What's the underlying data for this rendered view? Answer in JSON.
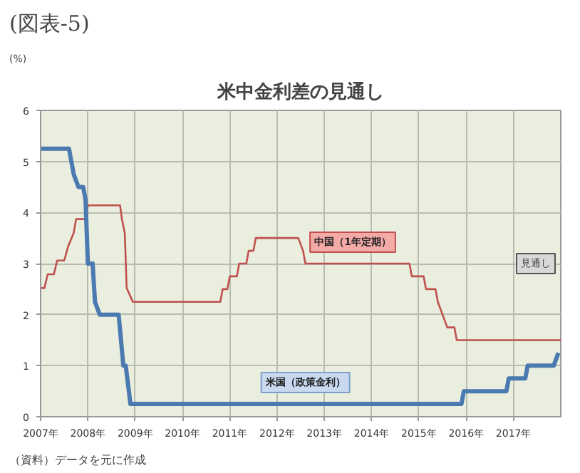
{
  "chart_data": {
    "type": "line",
    "title": "米中金利差の見通し",
    "ylabel": "(%)",
    "xlim": [
      2007,
      2018
    ],
    "ylim": [
      0,
      6
    ],
    "xticks": [
      {
        "value": 2007,
        "label": "2007年"
      },
      {
        "value": 2008,
        "label": "2008年"
      },
      {
        "value": 2009,
        "label": "2009年"
      },
      {
        "value": 2010,
        "label": "2010年"
      },
      {
        "value": 2011,
        "label": "2011年"
      },
      {
        "value": 2012,
        "label": "2012年"
      },
      {
        "value": 2013,
        "label": "2013年"
      },
      {
        "value": 2014,
        "label": "2014年"
      },
      {
        "value": 2015,
        "label": "2015年"
      },
      {
        "value": 2016,
        "label": "2016年"
      },
      {
        "value": 2017,
        "label": "2017年"
      }
    ],
    "yticks": [
      0,
      1,
      2,
      3,
      4,
      5,
      6
    ],
    "grid": true,
    "marker": "none",
    "line_style": "solid",
    "series": [
      {
        "color": "#c0504d",
        "x": [
          2007.0,
          2007.08,
          2007.15,
          2007.28,
          2007.35,
          2007.5,
          2007.58,
          2007.7,
          2007.75,
          2007.95,
          2008.0,
          2008.68,
          2008.72,
          2008.78,
          2008.82,
          2008.95,
          2010.8,
          2010.85,
          2010.95,
          2011.0,
          2011.15,
          2011.2,
          2011.35,
          2011.4,
          2011.5,
          2011.55,
          2012.45,
          2012.55,
          2012.6,
          2014.8,
          2014.85,
          2015.1,
          2015.15,
          2015.35,
          2015.4,
          2015.5,
          2015.6,
          2015.75,
          2015.8,
          2018.0
        ],
        "values": [
          2.52,
          2.52,
          2.79,
          2.79,
          3.06,
          3.06,
          3.33,
          3.6,
          3.87,
          3.87,
          4.14,
          4.14,
          3.87,
          3.6,
          2.52,
          2.25,
          2.25,
          2.5,
          2.5,
          2.75,
          2.75,
          3.0,
          3.0,
          3.25,
          3.25,
          3.5,
          3.5,
          3.25,
          3.0,
          3.0,
          2.75,
          2.75,
          2.5,
          2.5,
          2.25,
          2.0,
          1.75,
          1.75,
          1.5,
          1.5
        ]
      },
      {
        "color": "#4a7ab0",
        "x": [
          2007.0,
          2007.6,
          2007.7,
          2007.8,
          2007.9,
          2007.95,
          2008.0,
          2008.1,
          2008.15,
          2008.25,
          2008.65,
          2008.75,
          2008.8,
          2008.9,
          2015.9,
          2015.95,
          2016.85,
          2016.9,
          2017.25,
          2017.3,
          2017.85,
          2017.95
        ],
        "values": [
          5.25,
          5.25,
          4.75,
          4.5,
          4.5,
          4.25,
          3.0,
          3.0,
          2.25,
          2.0,
          2.0,
          1.0,
          1.0,
          0.25,
          0.25,
          0.5,
          0.5,
          0.75,
          0.75,
          1.0,
          1.0,
          1.25
        ]
      }
    ],
    "annotations": [
      "(図表-5)",
      {
        "text": "中国（1年定期）",
        "x": 2013.6,
        "y": 3.0
      },
      {
        "text": "米国（政策金利）",
        "x": 2012.6,
        "y": 0.25
      },
      "見通し",
      "（資料）データを元に作成"
    ]
  }
}
